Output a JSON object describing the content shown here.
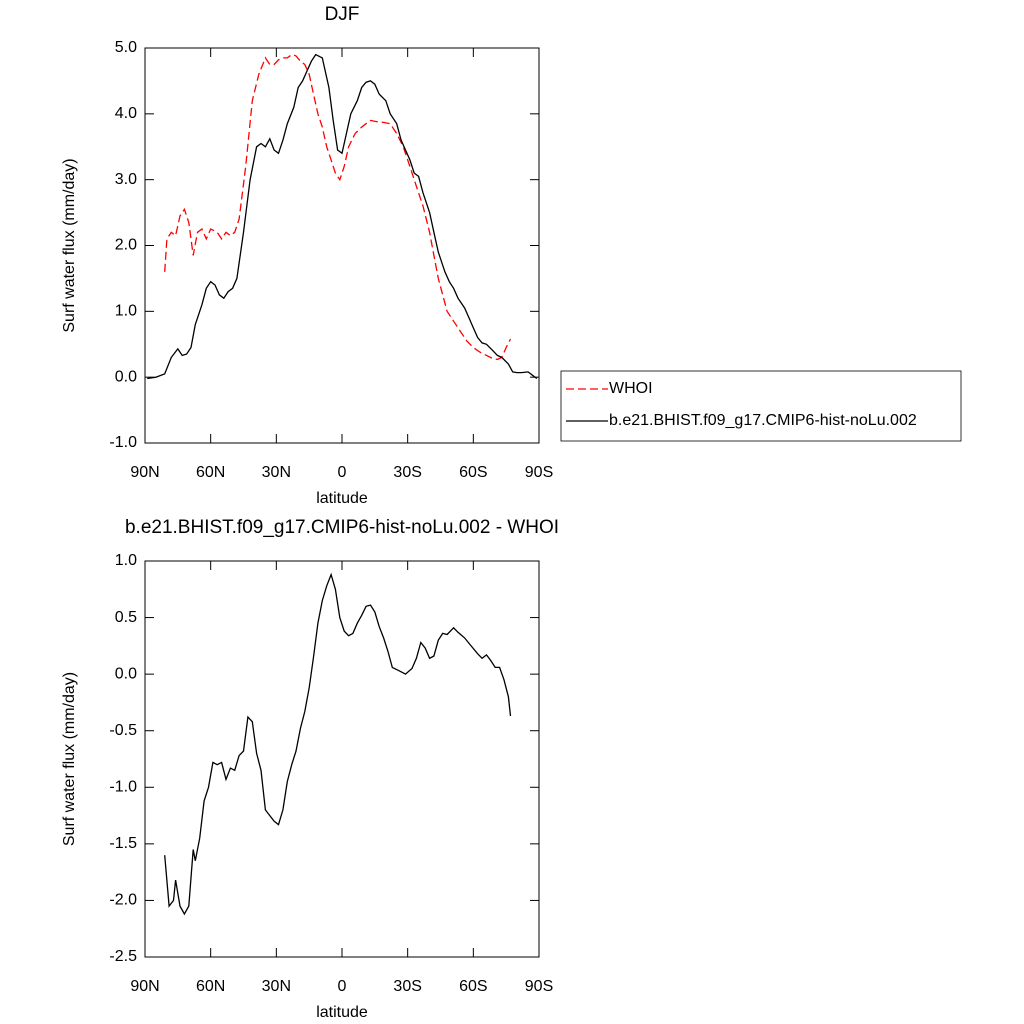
{
  "chart_data": [
    {
      "type": "line",
      "title": "DJF",
      "xlabel": "latitude",
      "ylabel": "Surf water flux (mm/day)",
      "xlim": [
        90,
        -90
      ],
      "xticks": [
        {
          "value": 90,
          "label": "90N"
        },
        {
          "value": 60,
          "label": "60N"
        },
        {
          "value": 30,
          "label": "30N"
        },
        0,
        {
          "value": -30,
          "label": "30S"
        },
        {
          "value": -60,
          "label": "60S"
        },
        {
          "value": -90,
          "label": "90S"
        }
      ],
      "ylim": [
        -1,
        5
      ],
      "yticks": [
        {
          "value": -1,
          "label": "-1.0"
        },
        {
          "value": 0,
          "label": "0.0"
        },
        {
          "value": 1,
          "label": "1.0"
        },
        {
          "value": 2,
          "label": "2.0"
        },
        {
          "value": 3,
          "label": "3.0"
        },
        {
          "value": 4,
          "label": "4.0"
        },
        {
          "value": 5,
          "label": "5.0"
        }
      ],
      "legend": "right",
      "series": [
        {
          "name": "WHOI",
          "color": "#ff0000",
          "line_style": "dashed",
          "x": [
            81,
            80,
            78,
            76,
            74,
            72,
            70,
            68,
            66,
            64,
            62,
            60,
            57,
            55,
            53,
            51,
            49,
            47,
            44,
            41,
            38,
            35,
            33,
            31,
            29,
            27,
            25,
            23,
            21,
            19,
            17,
            15,
            13,
            11,
            9,
            7,
            5,
            3,
            1,
            -1,
            -3,
            -6,
            -9,
            -11,
            -13,
            -16,
            -19,
            -22,
            -25,
            -28,
            -31,
            -34,
            -37,
            -40,
            -42,
            -44,
            -46,
            -48,
            -51,
            -54,
            -57,
            -60,
            -63,
            -66,
            -69,
            -71,
            -73,
            -75,
            -77
          ],
          "values": [
            1.6,
            2.1,
            2.2,
            2.15,
            2.45,
            2.55,
            2.35,
            1.85,
            2.2,
            2.25,
            2.1,
            2.25,
            2.2,
            2.1,
            2.2,
            2.15,
            2.2,
            2.4,
            3.2,
            4.2,
            4.6,
            4.85,
            4.75,
            4.75,
            4.82,
            4.85,
            4.85,
            4.9,
            4.88,
            4.8,
            4.75,
            4.6,
            4.3,
            4.0,
            3.8,
            3.5,
            3.3,
            3.1,
            3.0,
            3.2,
            3.5,
            3.7,
            3.8,
            3.85,
            3.9,
            3.88,
            3.87,
            3.85,
            3.7,
            3.5,
            3.2,
            2.9,
            2.6,
            2.2,
            1.85,
            1.5,
            1.25,
            1.0,
            0.85,
            0.7,
            0.55,
            0.45,
            0.38,
            0.33,
            0.28,
            0.27,
            0.3,
            0.45,
            0.58
          ]
        },
        {
          "name": "b.e21.BHIST.f09_g17.CMIP6-hist-noLu.002",
          "color": "#000000",
          "line_style": "solid",
          "x": [
            89,
            85,
            81,
            78,
            75,
            73,
            71,
            69,
            67,
            64,
            62,
            60,
            58,
            56,
            54,
            52,
            50,
            48,
            45,
            42,
            39,
            37,
            35,
            33,
            31,
            29,
            27,
            25,
            22,
            20,
            18,
            16,
            14,
            12,
            9,
            6,
            4,
            2,
            0,
            -2,
            -4,
            -7,
            -9,
            -11,
            -13,
            -15,
            -17,
            -20,
            -22,
            -25,
            -27,
            -29,
            -31,
            -33,
            -35,
            -37,
            -40,
            -42,
            -44,
            -47,
            -49,
            -51,
            -53,
            -56,
            -58,
            -60,
            -62,
            -64,
            -66,
            -69,
            -71,
            -73,
            -76,
            -78,
            -80,
            -82,
            -85,
            -87,
            -89
          ],
          "values": [
            -0.02,
            0.0,
            0.05,
            0.3,
            0.43,
            0.33,
            0.35,
            0.45,
            0.8,
            1.1,
            1.35,
            1.45,
            1.4,
            1.25,
            1.2,
            1.3,
            1.35,
            1.5,
            2.2,
            3.0,
            3.5,
            3.55,
            3.5,
            3.62,
            3.45,
            3.4,
            3.6,
            3.85,
            4.1,
            4.4,
            4.5,
            4.65,
            4.8,
            4.9,
            4.85,
            4.4,
            3.9,
            3.45,
            3.4,
            3.7,
            4.0,
            4.2,
            4.4,
            4.48,
            4.5,
            4.45,
            4.3,
            4.2,
            4.0,
            3.85,
            3.6,
            3.45,
            3.3,
            3.1,
            3.05,
            2.8,
            2.5,
            2.2,
            1.9,
            1.6,
            1.45,
            1.35,
            1.2,
            1.05,
            0.9,
            0.75,
            0.6,
            0.52,
            0.5,
            0.4,
            0.33,
            0.3,
            0.2,
            0.08,
            0.07,
            0.07,
            0.08,
            0.03,
            -0.02
          ]
        }
      ]
    },
    {
      "type": "line",
      "title": "b.e21.BHIST.f09_g17.CMIP6-hist-noLu.002 - WHOI",
      "xlabel": "latitude",
      "ylabel": "Surf water flux (mm/day)",
      "xlim": [
        90,
        -90
      ],
      "xticks": [
        {
          "value": 90,
          "label": "90N"
        },
        {
          "value": 60,
          "label": "60N"
        },
        {
          "value": 30,
          "label": "30N"
        },
        0,
        {
          "value": -30,
          "label": "30S"
        },
        {
          "value": -60,
          "label": "60S"
        },
        {
          "value": -90,
          "label": "90S"
        }
      ],
      "ylim": [
        -2.5,
        1
      ],
      "yticks": [
        {
          "value": -2.5,
          "label": "-2.5"
        },
        {
          "value": -2,
          "label": "-2.0"
        },
        {
          "value": -1.5,
          "label": "-1.5"
        },
        {
          "value": -1,
          "label": "-1.0"
        },
        {
          "value": -0.5,
          "label": "-0.5"
        },
        {
          "value": 0,
          "label": "0.0"
        },
        {
          "value": 0.5,
          "label": "0.5"
        },
        {
          "value": 1,
          "label": "1.0"
        }
      ],
      "series": [
        {
          "color": "#000000",
          "line_style": "solid",
          "x": [
            81,
            79,
            77,
            76,
            74,
            72,
            70,
            68,
            67,
            65,
            63,
            61,
            59,
            57,
            55,
            53,
            51,
            49,
            47,
            45,
            43,
            41,
            39,
            37,
            35,
            33,
            31,
            29,
            27,
            25,
            23,
            21,
            19,
            17,
            15,
            13,
            11,
            9,
            7,
            5,
            3,
            1,
            -1,
            -3,
            -5,
            -7,
            -9,
            -11,
            -13,
            -15,
            -17,
            -19,
            -21,
            -23,
            -26,
            -29,
            -32,
            -34,
            -36,
            -38,
            -40,
            -42,
            -44,
            -46,
            -48,
            -51,
            -53,
            -56,
            -59,
            -62,
            -64,
            -66,
            -68,
            -70,
            -72,
            -74,
            -76,
            -77
          ],
          "values": [
            -1.6,
            -2.05,
            -2.0,
            -1.82,
            -2.05,
            -2.12,
            -2.05,
            -1.55,
            -1.65,
            -1.45,
            -1.12,
            -1.0,
            -0.78,
            -0.8,
            -0.78,
            -0.93,
            -0.83,
            -0.85,
            -0.72,
            -0.68,
            -0.38,
            -0.42,
            -0.7,
            -0.85,
            -1.2,
            -1.25,
            -1.3,
            -1.33,
            -1.2,
            -0.95,
            -0.8,
            -0.68,
            -0.48,
            -0.33,
            -0.12,
            0.15,
            0.45,
            0.65,
            0.78,
            0.88,
            0.75,
            0.5,
            0.38,
            0.34,
            0.36,
            0.45,
            0.52,
            0.6,
            0.61,
            0.55,
            0.42,
            0.32,
            0.2,
            0.06,
            0.03,
            0.0,
            0.05,
            0.14,
            0.28,
            0.23,
            0.14,
            0.16,
            0.3,
            0.36,
            0.35,
            0.41,
            0.37,
            0.32,
            0.25,
            0.18,
            0.14,
            0.17,
            0.12,
            0.06,
            0.06,
            -0.05,
            -0.2,
            -0.37
          ]
        }
      ]
    }
  ]
}
